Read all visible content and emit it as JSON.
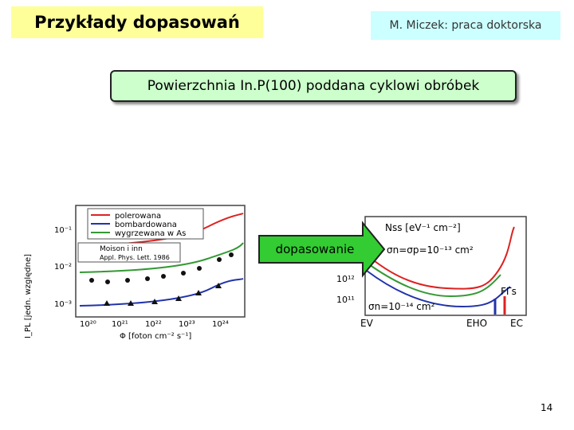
{
  "header": {
    "title": "Przykłady dopasowań",
    "author": "M. Miczek: praca doktorska"
  },
  "subtitle": "Powierzchnia In.P(100) poddana cyklowi obróbek",
  "left_figure": {
    "legend": [
      "polerowana",
      "bombardowana",
      "wygrzewana w As"
    ],
    "reference": [
      "Moison i inn",
      "Appl. Phys. Lett. 1986"
    ],
    "y_ticks": [
      "10⁻¹",
      "10⁻²",
      "10⁻³"
    ],
    "x_ticks": [
      "10²⁰",
      "10²¹",
      "10²²",
      "10²³",
      "10²⁴"
    ],
    "x_label": "Φ [foton cm⁻² s⁻¹]",
    "y_label": "I_PL [jedn. względne]"
  },
  "arrow_label": "dopasowanie",
  "right_figure": {
    "y_label": "Nss [eV⁻¹ cm⁻²]",
    "annotation_top": "σn=σp=10⁻¹³ cm²",
    "y_ticks": [
      "10¹²",
      "10¹¹"
    ],
    "annotation_bottom": "σn=10⁻¹⁴ cm²",
    "x_labels": [
      "EV",
      "EHO",
      "EC"
    ],
    "side_label": "FΓs"
  },
  "page_number": "14"
}
